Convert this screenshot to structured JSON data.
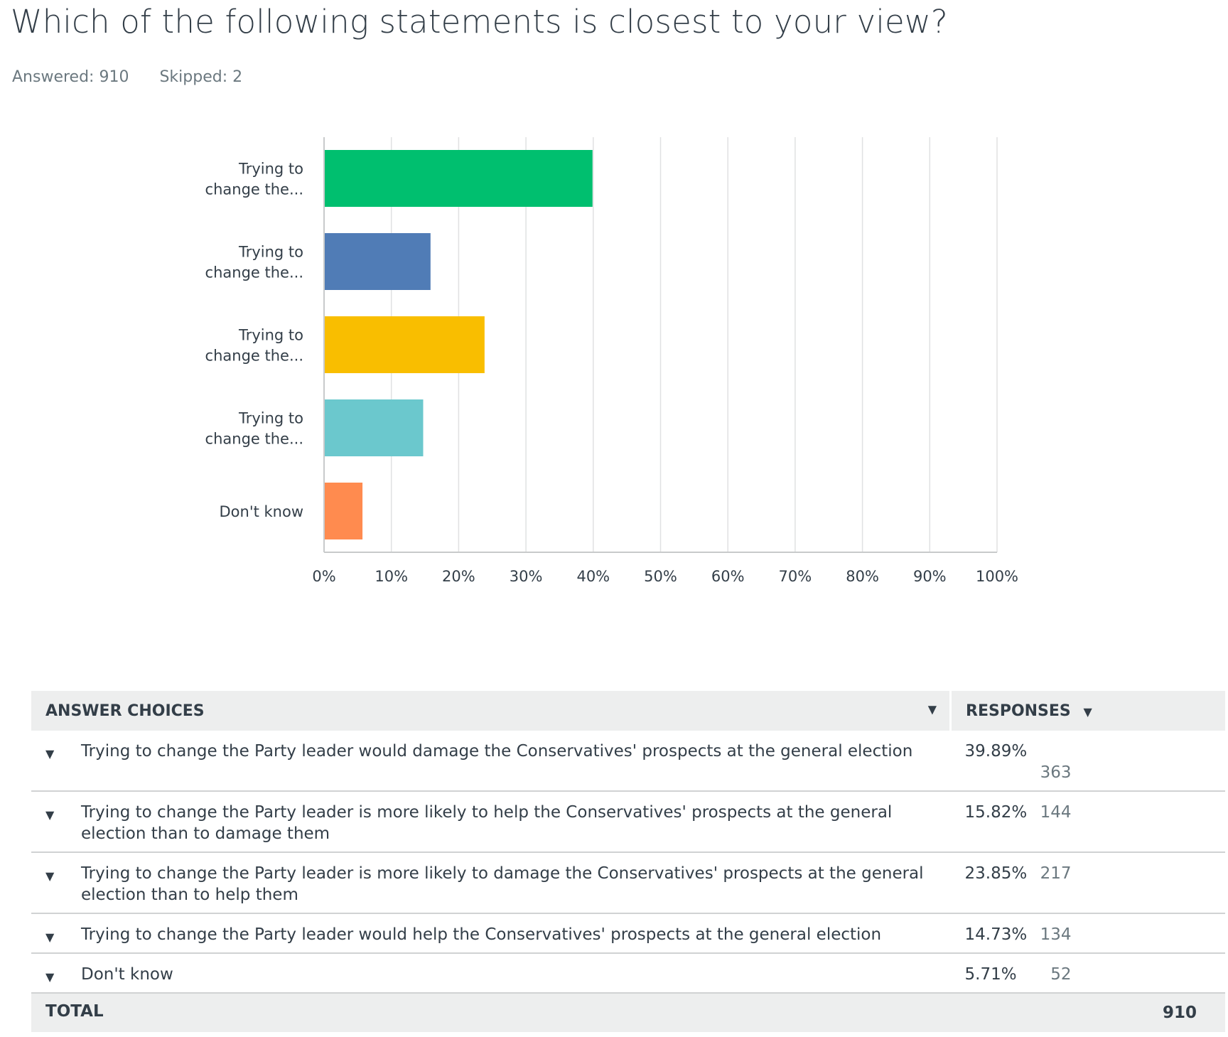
{
  "question": {
    "title": "Which of the following statements is closest to your view?",
    "answered_label": "Answered: 910",
    "skipped_label": "Skipped: 2"
  },
  "chart_data": {
    "type": "bar",
    "orientation": "horizontal",
    "categories": [
      "Trying to change the...",
      "Trying to change the...",
      "Trying to change the...",
      "Trying to change the...",
      "Don't know"
    ],
    "category_label_lines": [
      [
        "Trying to",
        "change the..."
      ],
      [
        "Trying to",
        "change the..."
      ],
      [
        "Trying to",
        "change the..."
      ],
      [
        "Trying to",
        "change the..."
      ],
      [
        "Don't know"
      ]
    ],
    "values": [
      39.89,
      15.82,
      23.85,
      14.73,
      5.71
    ],
    "colors": [
      "#00bf6f",
      "#507cb6",
      "#f9be00",
      "#6bc8cd",
      "#ff8b4f"
    ],
    "xlim": [
      0,
      100
    ],
    "xticks": [
      "0%",
      "10%",
      "20%",
      "30%",
      "40%",
      "50%",
      "60%",
      "70%",
      "80%",
      "90%",
      "100%"
    ],
    "grid": true,
    "title": "",
    "xlabel": "",
    "ylabel": ""
  },
  "table": {
    "header_choices": "ANSWER CHOICES",
    "header_responses": "RESPONSES",
    "rows": [
      {
        "choice": "Trying to change the Party leader would damage the Conservatives' prospects at the general election",
        "percent": "39.89%",
        "count": "363"
      },
      {
        "choice": "Trying to change the Party leader is more likely to help the Conservatives' prospects at the general election than to damage them",
        "percent": "15.82%",
        "count": "144"
      },
      {
        "choice": "Trying to change the Party leader is more likely to damage the Conservatives' prospects at the general election than to help them",
        "percent": "23.85%",
        "count": "217"
      },
      {
        "choice": "Trying to change the Party leader would help the Conservatives' prospects at the general election",
        "percent": "14.73%",
        "count": "134"
      },
      {
        "choice": "Don't know",
        "percent": "5.71%",
        "count": "52"
      }
    ],
    "total_label": "TOTAL",
    "total_value": "910"
  },
  "icons": {
    "sort": "caret-down-icon",
    "row_toggle": "caret-down-icon"
  }
}
